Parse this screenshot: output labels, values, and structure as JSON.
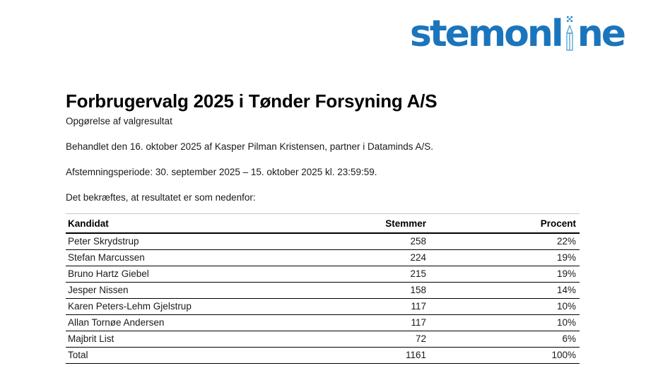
{
  "logo": {
    "alt": "stemonline",
    "text_left": "stemonl",
    "text_right": "ne",
    "color": "#1b75bc",
    "pencil_color": "#58a7d8",
    "cross_color": "#2e8bc9"
  },
  "header": {
    "title": "Forbrugervalg 2025 i Tønder Forsyning A/S",
    "subtitle": "Opgørelse af valgresultat"
  },
  "body": {
    "processed_line": "Behandlet den 16. oktober 2025 af Kasper Pilman Kristensen, partner i Dataminds A/S.",
    "period_line": "Afstemningsperiode: 30. september 2025 – 15. oktober 2025 kl. 23:59:59.",
    "confirm_line": "Det bekræftes, at resultatet er som nedenfor:"
  },
  "results_table": {
    "columns": [
      "Kandidat",
      "Stemmer",
      "Procent"
    ],
    "rows": [
      {
        "kandidat": "Peter Skrydstrup",
        "stemmer": "258",
        "procent": "22%"
      },
      {
        "kandidat": "Stefan Marcussen",
        "stemmer": "224",
        "procent": "19%"
      },
      {
        "kandidat": "Bruno Hartz Giebel",
        "stemmer": "215",
        "procent": "19%"
      },
      {
        "kandidat": "Jesper Nissen",
        "stemmer": "158",
        "procent": "14%"
      },
      {
        "kandidat": "Karen Peters-Lehm Gjelstrup",
        "stemmer": "117",
        "procent": "10%"
      },
      {
        "kandidat": "Allan Tornøe Andersen",
        "stemmer": "117",
        "procent": "10%"
      },
      {
        "kandidat": "Majbrit List",
        "stemmer": "72",
        "procent": "6%"
      },
      {
        "kandidat": "Total",
        "stemmer": "1161",
        "procent": "100%"
      }
    ]
  }
}
